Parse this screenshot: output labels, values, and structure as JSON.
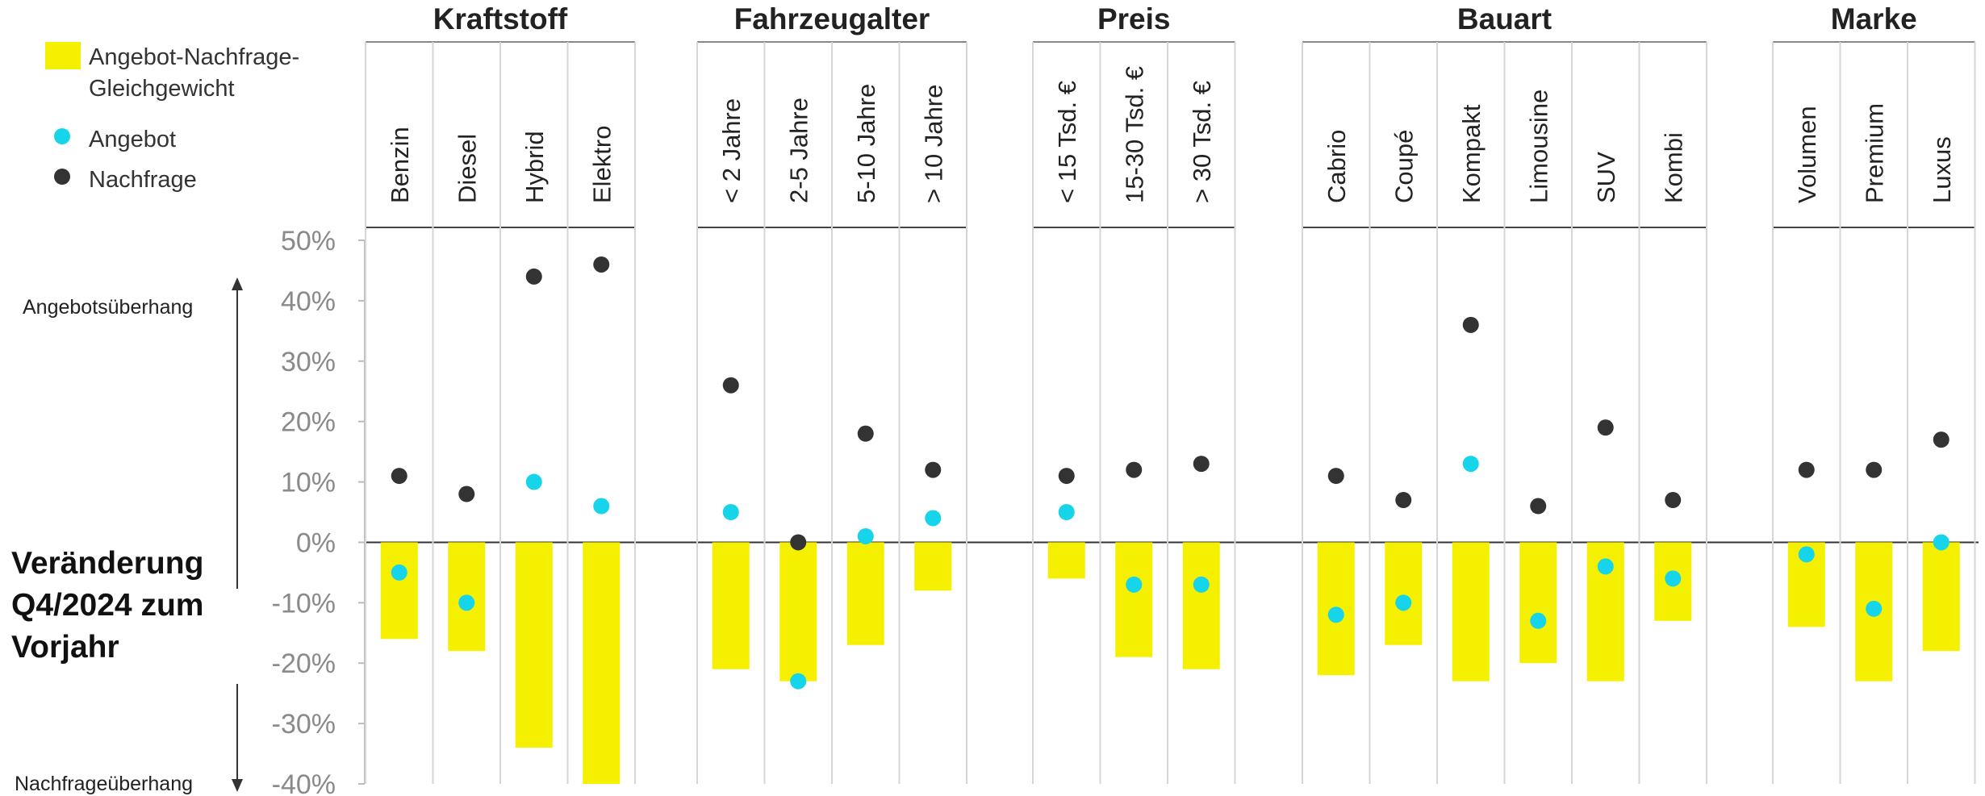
{
  "chart_data": {
    "type": "bar",
    "title": "",
    "y_label_lines": [
      "Veränderung",
      "Q4/2024 zum",
      "Vorjahr"
    ],
    "arrow_labels": {
      "up": "Angebotsüberhang",
      "down": "Nachfrageüberhang"
    },
    "y_ticks": [
      "50%",
      "40%",
      "30%",
      "20%",
      "10%",
      "0%",
      "-10%",
      "-20%",
      "-30%",
      "-40%"
    ],
    "ylim": [
      -40,
      50
    ],
    "grid": "vertical separators",
    "legend": {
      "position": "top-left",
      "entries": [
        {
          "label_lines": [
            "Angebot-Nachfrage-",
            "Gleichgewicht"
          ],
          "symbol": "bar",
          "color": "#f5f000"
        },
        {
          "label_lines": [
            "Angebot"
          ],
          "symbol": "dot",
          "color": "#16d4ea"
        },
        {
          "label_lines": [
            "Nachfrage"
          ],
          "symbol": "dot",
          "color": "#333333"
        }
      ]
    },
    "colors": {
      "balance": "#f5f000",
      "supply": "#16d4ea",
      "demand": "#333333"
    },
    "series_names": [
      "Angebot-Nachfrage-Gleichgewicht",
      "Angebot",
      "Nachfrage"
    ],
    "groups": [
      {
        "name": "Kraftstoff",
        "categories": [
          {
            "label": "Benzin",
            "balance": -16,
            "supply": -5,
            "demand": 11
          },
          {
            "label": "Diesel",
            "balance": -18,
            "supply": -10,
            "demand": 8
          },
          {
            "label": "Hybrid",
            "balance": -34,
            "supply": 10,
            "demand": 44
          },
          {
            "label": "Elektro",
            "balance": -40,
            "supply": 6,
            "demand": 46
          }
        ]
      },
      {
        "name": "Fahrzeugalter",
        "categories": [
          {
            "label": "< 2 Jahre",
            "balance": -21,
            "supply": 5,
            "demand": 26
          },
          {
            "label": "2-5 Jahre",
            "balance": -23,
            "supply": -23,
            "demand": 0
          },
          {
            "label": "5-10 Jahre",
            "balance": -17,
            "supply": 1,
            "demand": 18
          },
          {
            "label": "> 10 Jahre",
            "balance": -8,
            "supply": 4,
            "demand": 12
          }
        ]
      },
      {
        "name": "Preis",
        "categories": [
          {
            "label": "< 15 Tsd. €",
            "balance": -6,
            "supply": 5,
            "demand": 11
          },
          {
            "label": "15-30 Tsd. €",
            "balance": -19,
            "supply": -7,
            "demand": 12
          },
          {
            "label": "> 30 Tsd. €",
            "balance": -21,
            "supply": -7,
            "demand": 13
          }
        ]
      },
      {
        "name": "Bauart",
        "categories": [
          {
            "label": "Cabrio",
            "balance": -22,
            "supply": -12,
            "demand": 11
          },
          {
            "label": "Coupé",
            "balance": -17,
            "supply": -10,
            "demand": 7
          },
          {
            "label": "Kompakt",
            "balance": -23,
            "supply": 13,
            "demand": 36
          },
          {
            "label": "Limousine",
            "balance": -20,
            "supply": -13,
            "demand": 6
          },
          {
            "label": "SUV",
            "balance": -23,
            "supply": -4,
            "demand": 19
          },
          {
            "label": "Kombi",
            "balance": -13,
            "supply": -6,
            "demand": 7
          }
        ]
      },
      {
        "name": "Marke",
        "categories": [
          {
            "label": "Volumen",
            "balance": -14,
            "supply": -2,
            "demand": 12
          },
          {
            "label": "Premium",
            "balance": -23,
            "supply": -11,
            "demand": 12
          },
          {
            "label": "Luxus",
            "balance": -18,
            "supply": 0,
            "demand": 17
          }
        ]
      }
    ]
  }
}
